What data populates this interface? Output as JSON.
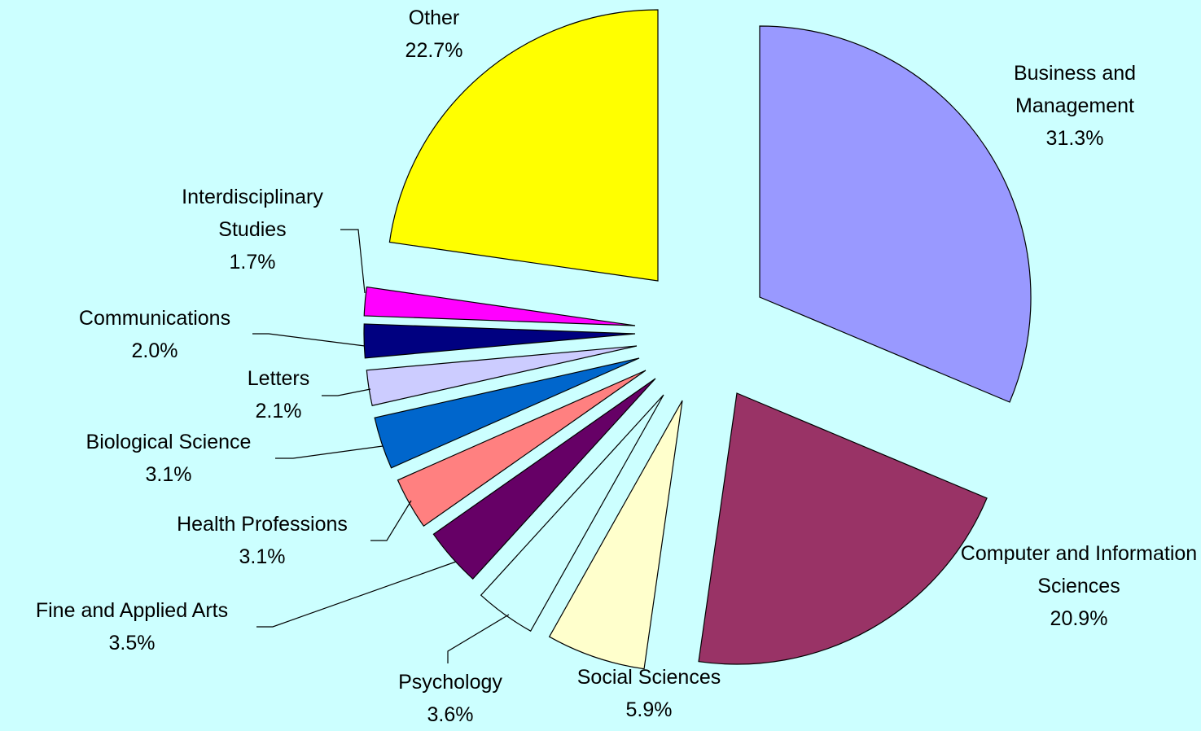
{
  "chart_data": {
    "type": "pie",
    "categories": [
      "Business and Management",
      "Computer and Information Sciences",
      "Social Sciences",
      "Psychology",
      "Fine and Applied Arts",
      "Health Professions",
      "Biological Science",
      "Letters",
      "Communications",
      "Interdisciplinary Studies",
      "Other"
    ],
    "values": [
      31.3,
      20.9,
      5.9,
      3.6,
      3.5,
      3.1,
      3.1,
      2.1,
      2.0,
      1.7,
      22.7
    ],
    "value_labels": [
      "31.3%",
      "20.9%",
      "5.9%",
      "3.6%",
      "3.5%",
      "3.1%",
      "3.1%",
      "2.1%",
      "2.0%",
      "1.7%",
      "22.7%"
    ],
    "colors": [
      "#9999ff",
      "#993366",
      "#ffffcc",
      "#ccffff",
      "#660066",
      "#ff8080",
      "#0066cc",
      "#ccccff",
      "#000080",
      "#ff00ff",
      "#ffff00"
    ]
  }
}
